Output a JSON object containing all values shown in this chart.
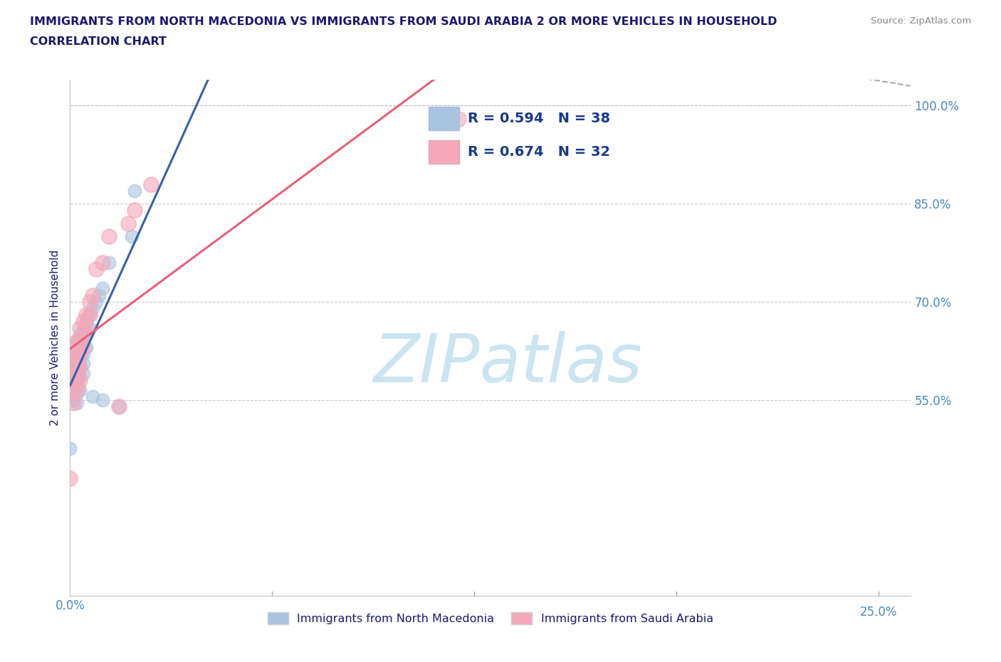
{
  "title_line1": "IMMIGRANTS FROM NORTH MACEDONIA VS IMMIGRANTS FROM SAUDI ARABIA 2 OR MORE VEHICLES IN HOUSEHOLD",
  "title_line2": "CORRELATION CHART",
  "source_text": "Source: ZipAtlas.com",
  "ylabel": "2 or more Vehicles in Household",
  "xlim": [
    0.0,
    0.26
  ],
  "ylim": [
    0.25,
    1.04
  ],
  "ytick_vals": [
    0.55,
    0.7,
    0.85,
    1.0
  ],
  "ytick_labels": [
    "55.0%",
    "70.0%",
    "85.0%",
    "100.0%"
  ],
  "xtick_vals": [
    0.0
  ],
  "xtick_labels": [
    "0.0%"
  ],
  "xtick_right_val": 0.25,
  "xtick_right_label": "25.0%",
  "legend_labels": [
    "Immigrants from North Macedonia",
    "Immigrants from Saudi Arabia"
  ],
  "r_mac": 0.594,
  "n_mac": 38,
  "r_sau": 0.674,
  "n_sau": 32,
  "blue_color": "#aac4e0",
  "pink_color": "#f4a8ba",
  "blue_line_color": "#3a5fa8",
  "pink_line_color": "#e8607a",
  "watermark": "ZIPatlas",
  "watermark_color": "#cce4f0",
  "bg_color": "#ffffff",
  "grid_color": "#bbbbbb",
  "title_color": "#1a1a6e",
  "axis_label_color": "#1a1a6e",
  "tick_label_color": "#4a8abf",
  "source_color": "#888888",
  "scatter_mac": [
    [
      0.001,
      0.63
    ],
    [
      0.001,
      0.61
    ],
    [
      0.001,
      0.59
    ],
    [
      0.001,
      0.57
    ],
    [
      0.001,
      0.55
    ],
    [
      0.002,
      0.64
    ],
    [
      0.002,
      0.62
    ],
    [
      0.002,
      0.6
    ],
    [
      0.002,
      0.58
    ],
    [
      0.002,
      0.56
    ],
    [
      0.002,
      0.545
    ],
    [
      0.003,
      0.65
    ],
    [
      0.003,
      0.63
    ],
    [
      0.003,
      0.61
    ],
    [
      0.003,
      0.6
    ],
    [
      0.003,
      0.585
    ],
    [
      0.003,
      0.565
    ],
    [
      0.004,
      0.66
    ],
    [
      0.004,
      0.64
    ],
    [
      0.004,
      0.62
    ],
    [
      0.004,
      0.605
    ],
    [
      0.004,
      0.59
    ],
    [
      0.005,
      0.67
    ],
    [
      0.005,
      0.65
    ],
    [
      0.005,
      0.63
    ],
    [
      0.006,
      0.68
    ],
    [
      0.006,
      0.66
    ],
    [
      0.007,
      0.69
    ],
    [
      0.007,
      0.555
    ],
    [
      0.008,
      0.7
    ],
    [
      0.009,
      0.71
    ],
    [
      0.01,
      0.72
    ],
    [
      0.01,
      0.55
    ],
    [
      0.012,
      0.76
    ],
    [
      0.015,
      0.54
    ],
    [
      0.019,
      0.8
    ],
    [
      0.02,
      0.87
    ],
    [
      0.0,
      0.475
    ]
  ],
  "scatter_sau": [
    [
      0.001,
      0.62
    ],
    [
      0.001,
      0.6
    ],
    [
      0.001,
      0.58
    ],
    [
      0.001,
      0.56
    ],
    [
      0.001,
      0.545
    ],
    [
      0.002,
      0.64
    ],
    [
      0.002,
      0.62
    ],
    [
      0.002,
      0.6
    ],
    [
      0.002,
      0.58
    ],
    [
      0.002,
      0.565
    ],
    [
      0.003,
      0.66
    ],
    [
      0.003,
      0.64
    ],
    [
      0.003,
      0.62
    ],
    [
      0.003,
      0.6
    ],
    [
      0.003,
      0.58
    ],
    [
      0.004,
      0.67
    ],
    [
      0.004,
      0.65
    ],
    [
      0.004,
      0.63
    ],
    [
      0.005,
      0.68
    ],
    [
      0.005,
      0.66
    ],
    [
      0.006,
      0.7
    ],
    [
      0.006,
      0.68
    ],
    [
      0.007,
      0.71
    ],
    [
      0.008,
      0.75
    ],
    [
      0.01,
      0.76
    ],
    [
      0.012,
      0.8
    ],
    [
      0.015,
      0.54
    ],
    [
      0.018,
      0.82
    ],
    [
      0.02,
      0.84
    ],
    [
      0.025,
      0.88
    ],
    [
      0.12,
      0.98
    ],
    [
      0.0,
      0.43
    ]
  ],
  "marker_size_mac": 13,
  "marker_size_sau": 15,
  "fig_width": 14.06,
  "fig_height": 9.3,
  "dpi": 100
}
